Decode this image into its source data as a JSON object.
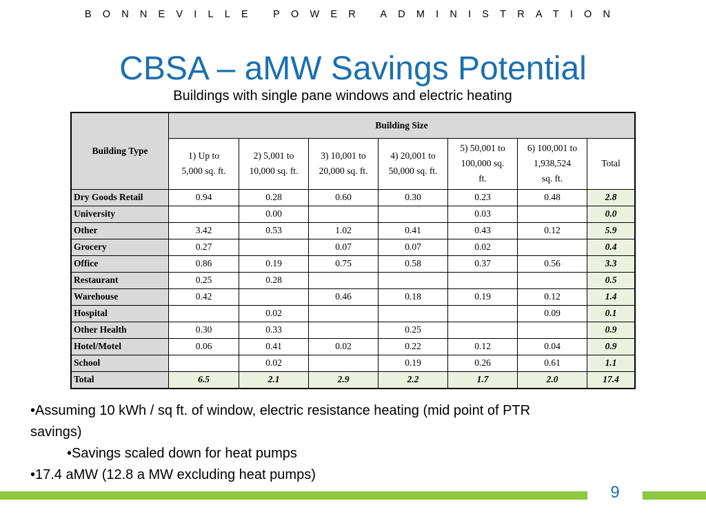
{
  "header": {
    "org": "BONNEVILLE POWER ADMINISTRATION"
  },
  "slide": {
    "title": "CBSA – aMW Savings Potential",
    "subtitle": "Buildings with single pane windows and electric heating",
    "page_number": "9"
  },
  "table": {
    "row_header": "Building Type",
    "group_header": "Building Size",
    "columns": [
      [
        "1) Up to",
        "5,000 sq. ft."
      ],
      [
        "2) 5,001 to",
        "10,000 sq. ft."
      ],
      [
        "3) 10,001 to",
        "20,000 sq. ft."
      ],
      [
        "4) 20,001 to",
        "50,000 sq. ft."
      ],
      [
        "5) 50,001 to",
        "100,000 sq.",
        "ft."
      ],
      [
        "6) 100,001 to",
        "1,938,524",
        "sq. ft."
      ]
    ],
    "total_header": "Total",
    "rows": [
      {
        "label": "Dry Goods Retail",
        "values": [
          "0.94",
          "0.28",
          "0.60",
          "0.30",
          "0.23",
          "0.48"
        ],
        "total": "2.8"
      },
      {
        "label": "University",
        "values": [
          "",
          "0.00",
          "",
          "",
          "0.03",
          ""
        ],
        "total": "0.0"
      },
      {
        "label": "Other",
        "values": [
          "3.42",
          "0.53",
          "1.02",
          "0.41",
          "0.43",
          "0.12"
        ],
        "total": "5.9"
      },
      {
        "label": "Grocery",
        "values": [
          "0.27",
          "",
          "0.07",
          "0.07",
          "0.02",
          ""
        ],
        "total": "0.4"
      },
      {
        "label": "Office",
        "values": [
          "0.86",
          "0.19",
          "0.75",
          "0.58",
          "0.37",
          "0.56"
        ],
        "total": "3.3"
      },
      {
        "label": "Restaurant",
        "values": [
          "0.25",
          "0.28",
          "",
          "",
          "",
          ""
        ],
        "total": "0.5"
      },
      {
        "label": "Warehouse",
        "values": [
          "0.42",
          "",
          "0.46",
          "0.18",
          "0.19",
          "0.12"
        ],
        "total": "1.4"
      },
      {
        "label": "Hospital",
        "values": [
          "",
          "0.02",
          "",
          "",
          "",
          "0.09"
        ],
        "total": "0.1"
      },
      {
        "label": "Other Health",
        "values": [
          "0.30",
          "0.33",
          "",
          "0.25",
          "",
          ""
        ],
        "total": "0.9"
      },
      {
        "label": "Hotel/Motel",
        "values": [
          "0.06",
          "0.41",
          "0.02",
          "0.22",
          "0.12",
          "0.04"
        ],
        "total": "0.9"
      },
      {
        "label": "School",
        "values": [
          "",
          "0.02",
          "",
          "0.19",
          "0.26",
          "0.61"
        ],
        "total": "1.1"
      }
    ],
    "total_row": {
      "label": "Total",
      "values": [
        "6.5",
        "2.1",
        "2.9",
        "2.2",
        "1.7",
        "2.0"
      ],
      "total": "17.4"
    }
  },
  "bullets": [
    {
      "text": "•Assuming 10 kWh / sq ft. of window, electric resistance heating (mid point of PTR savings)",
      "level": 1
    },
    {
      "text": "•Savings scaled down for heat pumps",
      "level": 2
    },
    {
      "text": "•17.4 aMW (12.8 a MW excluding heat pumps)",
      "level": 1
    }
  ],
  "colors": {
    "title": "#1a6fb0",
    "accent_green": "#8dc63f",
    "header_gray": "#d9d9d9",
    "total_green": "#ebf1de"
  }
}
